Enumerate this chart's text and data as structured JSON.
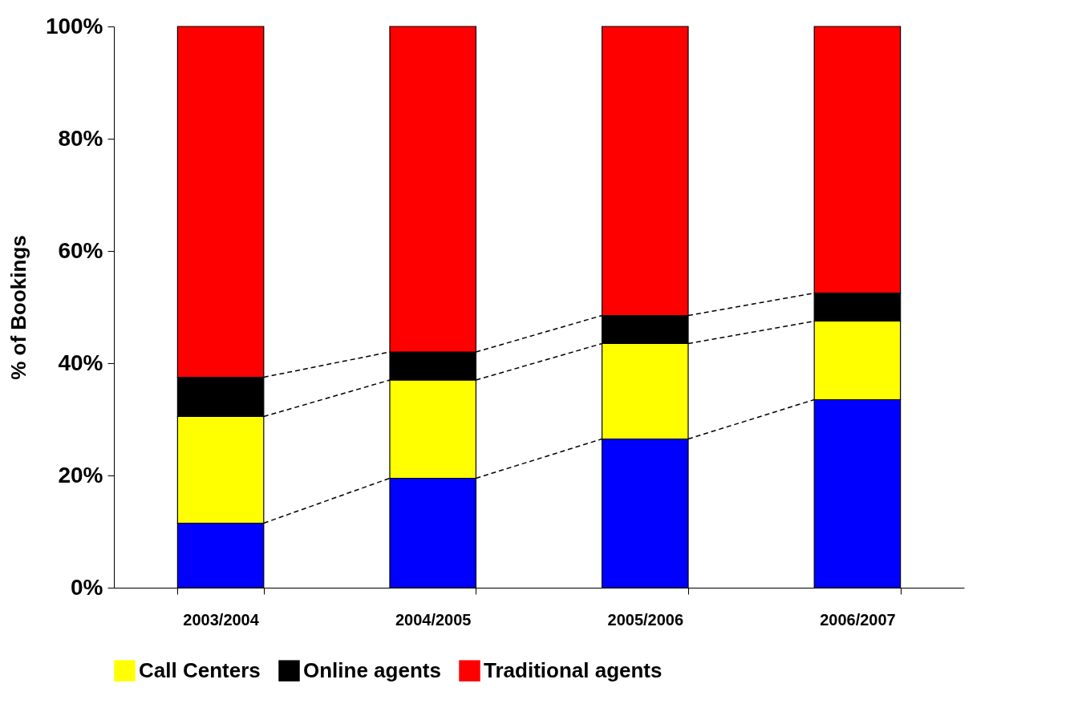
{
  "chart_data": {
    "type": "bar",
    "stacked": true,
    "ylabel": "% of Bookings",
    "categories": [
      "2003/2004",
      "2004/2005",
      "2005/2006",
      "2006/2007"
    ],
    "series": [
      {
        "color": "#0000ff",
        "values": [
          11.5,
          19.5,
          26.5,
          33.5
        ]
      },
      {
        "name": "Call Centers",
        "color": "#ffff00",
        "values": [
          19,
          17.5,
          17,
          14
        ]
      },
      {
        "name": "Online agents",
        "color": "#000000",
        "values": [
          7,
          5,
          5,
          5
        ]
      },
      {
        "name": "Traditional agents",
        "color": "#ff0000",
        "values": [
          62.5,
          58,
          51.5,
          47.5
        ]
      }
    ],
    "ylim": [
      0,
      100
    ],
    "yticks": [
      {
        "value": 0,
        "label": "0%"
      },
      {
        "value": 20,
        "label": "20%"
      },
      {
        "value": 40,
        "label": "40%"
      },
      {
        "value": 60,
        "label": "60%"
      },
      {
        "value": 80,
        "label": "80%"
      },
      {
        "value": 100,
        "label": "100%"
      }
    ],
    "grid": false,
    "legend": "bottom"
  }
}
